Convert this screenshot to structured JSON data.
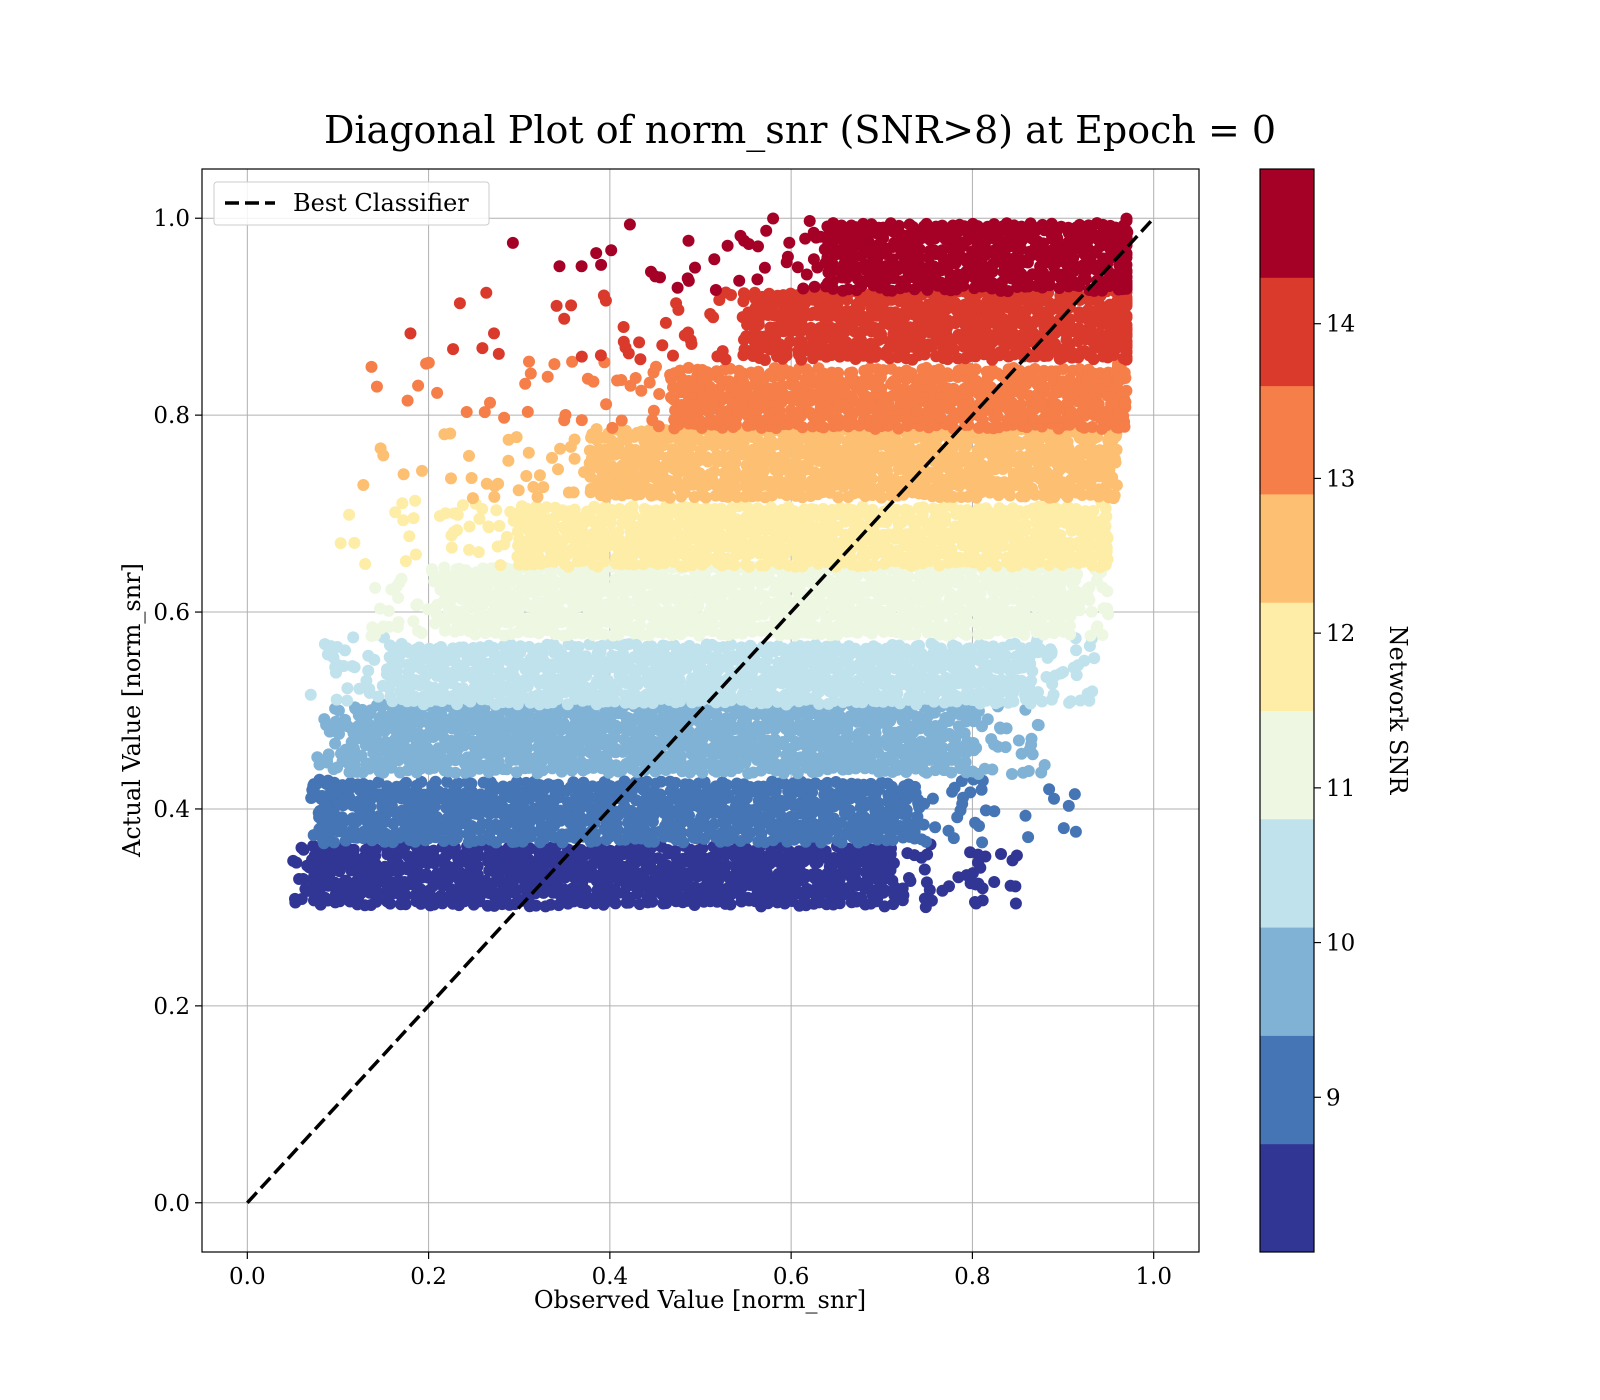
{
  "chart_data": {
    "type": "scatter",
    "title": "Diagonal Plot of norm_snr (SNR>8) at Epoch = 0",
    "xlabel": "Observed Value [norm_snr]",
    "ylabel": "Actual Value [norm_snr]",
    "xlim": [
      -0.05,
      1.05
    ],
    "ylim": [
      -0.05,
      1.05
    ],
    "x_ticks": [
      "0.0",
      "0.2",
      "0.4",
      "0.6",
      "0.8",
      "1.0"
    ],
    "y_ticks": [
      "0.0",
      "0.2",
      "0.4",
      "0.6",
      "0.8",
      "1.0"
    ],
    "x_tick_values": [
      0,
      0.2,
      0.4,
      0.6,
      0.8,
      1.0
    ],
    "y_tick_values": [
      0,
      0.2,
      0.4,
      0.6,
      0.8,
      1.0
    ],
    "grid": true,
    "legend": {
      "position": "top-left",
      "entries": [
        {
          "label": "Best Classifier",
          "style": "dashed",
          "color": "#000000"
        }
      ]
    },
    "reference_line": {
      "label": "Best Classifier",
      "x": [
        0,
        1
      ],
      "y": [
        0,
        1
      ]
    },
    "colorbar": {
      "label": "Network SNR",
      "ticks": [
        "9",
        "10",
        "11",
        "12",
        "13",
        "14"
      ],
      "tick_values": [
        9,
        10,
        11,
        12,
        13,
        14
      ],
      "range": [
        8,
        15
      ],
      "levels": [
        {
          "from": 8.0,
          "to": 8.7,
          "color": "#313695"
        },
        {
          "from": 8.7,
          "to": 9.4,
          "color": "#4575b4"
        },
        {
          "from": 9.4,
          "to": 10.1,
          "color": "#80b2d6"
        },
        {
          "from": 10.1,
          "to": 10.8,
          "color": "#bfe2ed"
        },
        {
          "from": 10.8,
          "to": 11.5,
          "color": "#eef7e2"
        },
        {
          "from": 11.5,
          "to": 12.2,
          "color": "#fdeda6"
        },
        {
          "from": 12.2,
          "to": 12.9,
          "color": "#fdbf71"
        },
        {
          "from": 12.9,
          "to": 13.6,
          "color": "#f57e49"
        },
        {
          "from": 13.6,
          "to": 14.3,
          "color": "#da3a2c"
        },
        {
          "from": 14.3,
          "to": 15.0,
          "color": "#a50026"
        }
      ]
    },
    "bands": [
      {
        "snr": 8.35,
        "color": "#313695",
        "y_range": [
          0.3,
          0.365
        ],
        "x_core": [
          0.08,
          0.72
        ],
        "x_scatter": [
          0.05,
          0.85
        ]
      },
      {
        "snr": 9.05,
        "color": "#4575b4",
        "y_range": [
          0.365,
          0.435
        ],
        "x_core": [
          0.09,
          0.74
        ],
        "x_scatter": [
          0.07,
          0.92
        ]
      },
      {
        "snr": 9.75,
        "color": "#80b2d6",
        "y_range": [
          0.435,
          0.505
        ],
        "x_core": [
          0.12,
          0.8
        ],
        "x_scatter": [
          0.07,
          0.88
        ]
      },
      {
        "snr": 10.45,
        "color": "#bfe2ed",
        "y_range": [
          0.505,
          0.575
        ],
        "x_core": [
          0.16,
          0.87
        ],
        "x_scatter": [
          0.07,
          0.94
        ]
      },
      {
        "snr": 11.15,
        "color": "#eef7e2",
        "y_range": [
          0.575,
          0.645
        ],
        "x_core": [
          0.22,
          0.91
        ],
        "x_scatter": [
          0.13,
          0.95
        ]
      },
      {
        "snr": 11.85,
        "color": "#fdeda6",
        "y_range": [
          0.645,
          0.715
        ],
        "x_core": [
          0.3,
          0.94
        ],
        "x_scatter": [
          0.1,
          0.95
        ]
      },
      {
        "snr": 12.55,
        "color": "#fdbf71",
        "y_range": [
          0.715,
          0.785
        ],
        "x_core": [
          0.38,
          0.95
        ],
        "x_scatter": [
          0.13,
          0.96
        ]
      },
      {
        "snr": 13.25,
        "color": "#f57e49",
        "y_range": [
          0.785,
          0.855
        ],
        "x_core": [
          0.47,
          0.96
        ],
        "x_scatter": [
          0.14,
          0.97
        ]
      },
      {
        "snr": 13.95,
        "color": "#da3a2c",
        "y_range": [
          0.855,
          0.925
        ],
        "x_core": [
          0.55,
          0.97
        ],
        "x_scatter": [
          0.18,
          0.97
        ]
      },
      {
        "snr": 14.65,
        "color": "#a50026",
        "y_range": [
          0.925,
          1.0
        ],
        "x_core": [
          0.64,
          0.97
        ],
        "x_scatter": [
          0.29,
          0.97
        ]
      }
    ],
    "notable_points": [
      {
        "x": 0.053,
        "y": 0.305,
        "color": "#313695"
      },
      {
        "x": 0.848,
        "y": 0.304,
        "color": "#313695"
      },
      {
        "x": 0.913,
        "y": 0.415,
        "color": "#4575b4"
      },
      {
        "x": 0.07,
        "y": 0.516,
        "color": "#bfe2ed"
      },
      {
        "x": 0.18,
        "y": 0.883,
        "color": "#da3a2c"
      },
      {
        "x": 0.227,
        "y": 0.867,
        "color": "#da3a2c"
      },
      {
        "x": 0.293,
        "y": 0.975,
        "color": "#a50026"
      },
      {
        "x": 0.137,
        "y": 0.849,
        "color": "#f57e49"
      },
      {
        "x": 0.143,
        "y": 0.829,
        "color": "#f57e49"
      },
      {
        "x": 0.128,
        "y": 0.729,
        "color": "#fdbf71"
      },
      {
        "x": 0.103,
        "y": 0.67,
        "color": "#fdeda6"
      }
    ]
  }
}
